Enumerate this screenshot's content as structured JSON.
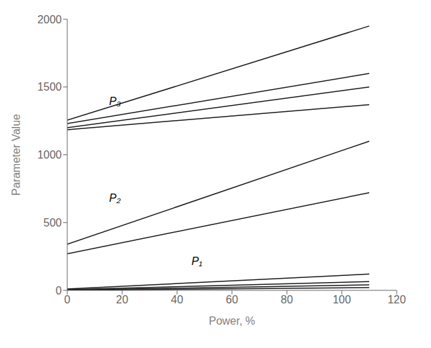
{
  "chart_data": {
    "type": "line",
    "xlabel": "Power, %",
    "ylabel": "Parameter Value",
    "x": [
      0,
      110
    ],
    "series": [
      {
        "values": [
          1255,
          1950
        ]
      },
      {
        "values": [
          1230,
          1600
        ]
      },
      {
        "values": [
          1200,
          1500
        ]
      },
      {
        "values": [
          1185,
          1370
        ]
      },
      {
        "values": [
          340,
          1100
        ]
      },
      {
        "values": [
          270,
          720
        ]
      },
      {
        "values": [
          10,
          120
        ]
      },
      {
        "values": [
          5,
          65
        ]
      },
      {
        "values": [
          2,
          40
        ]
      },
      {
        "values": [
          1,
          20
        ]
      }
    ],
    "color": "#1a1a1a",
    "xlim": [
      0,
      120
    ],
    "ylim": [
      0,
      2000
    ],
    "xticks": [
      0,
      20,
      40,
      60,
      80,
      100,
      120
    ],
    "yticks": [
      0,
      500,
      1000,
      1500,
      2000
    ],
    "grid": false,
    "annotations": [
      {
        "text": "P₃",
        "x": 14,
        "y": 1395
      },
      {
        "text": "P₂",
        "x": 14,
        "y": 680
      },
      {
        "text": "P₁",
        "x": 44,
        "y": 215
      }
    ]
  }
}
